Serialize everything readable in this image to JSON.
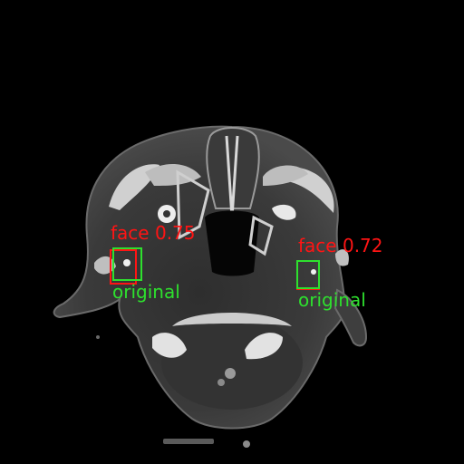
{
  "image": {
    "subject": "axial head CT scan",
    "colors": {
      "background": "#000000",
      "prediction": "#ff1414",
      "ground_truth": "#2ee02e"
    }
  },
  "detections": [
    {
      "predicted_label": "face",
      "score": "0.75",
      "truth_label": "original"
    },
    {
      "predicted_label": "face",
      "score": "0.72",
      "truth_label": "original"
    }
  ]
}
